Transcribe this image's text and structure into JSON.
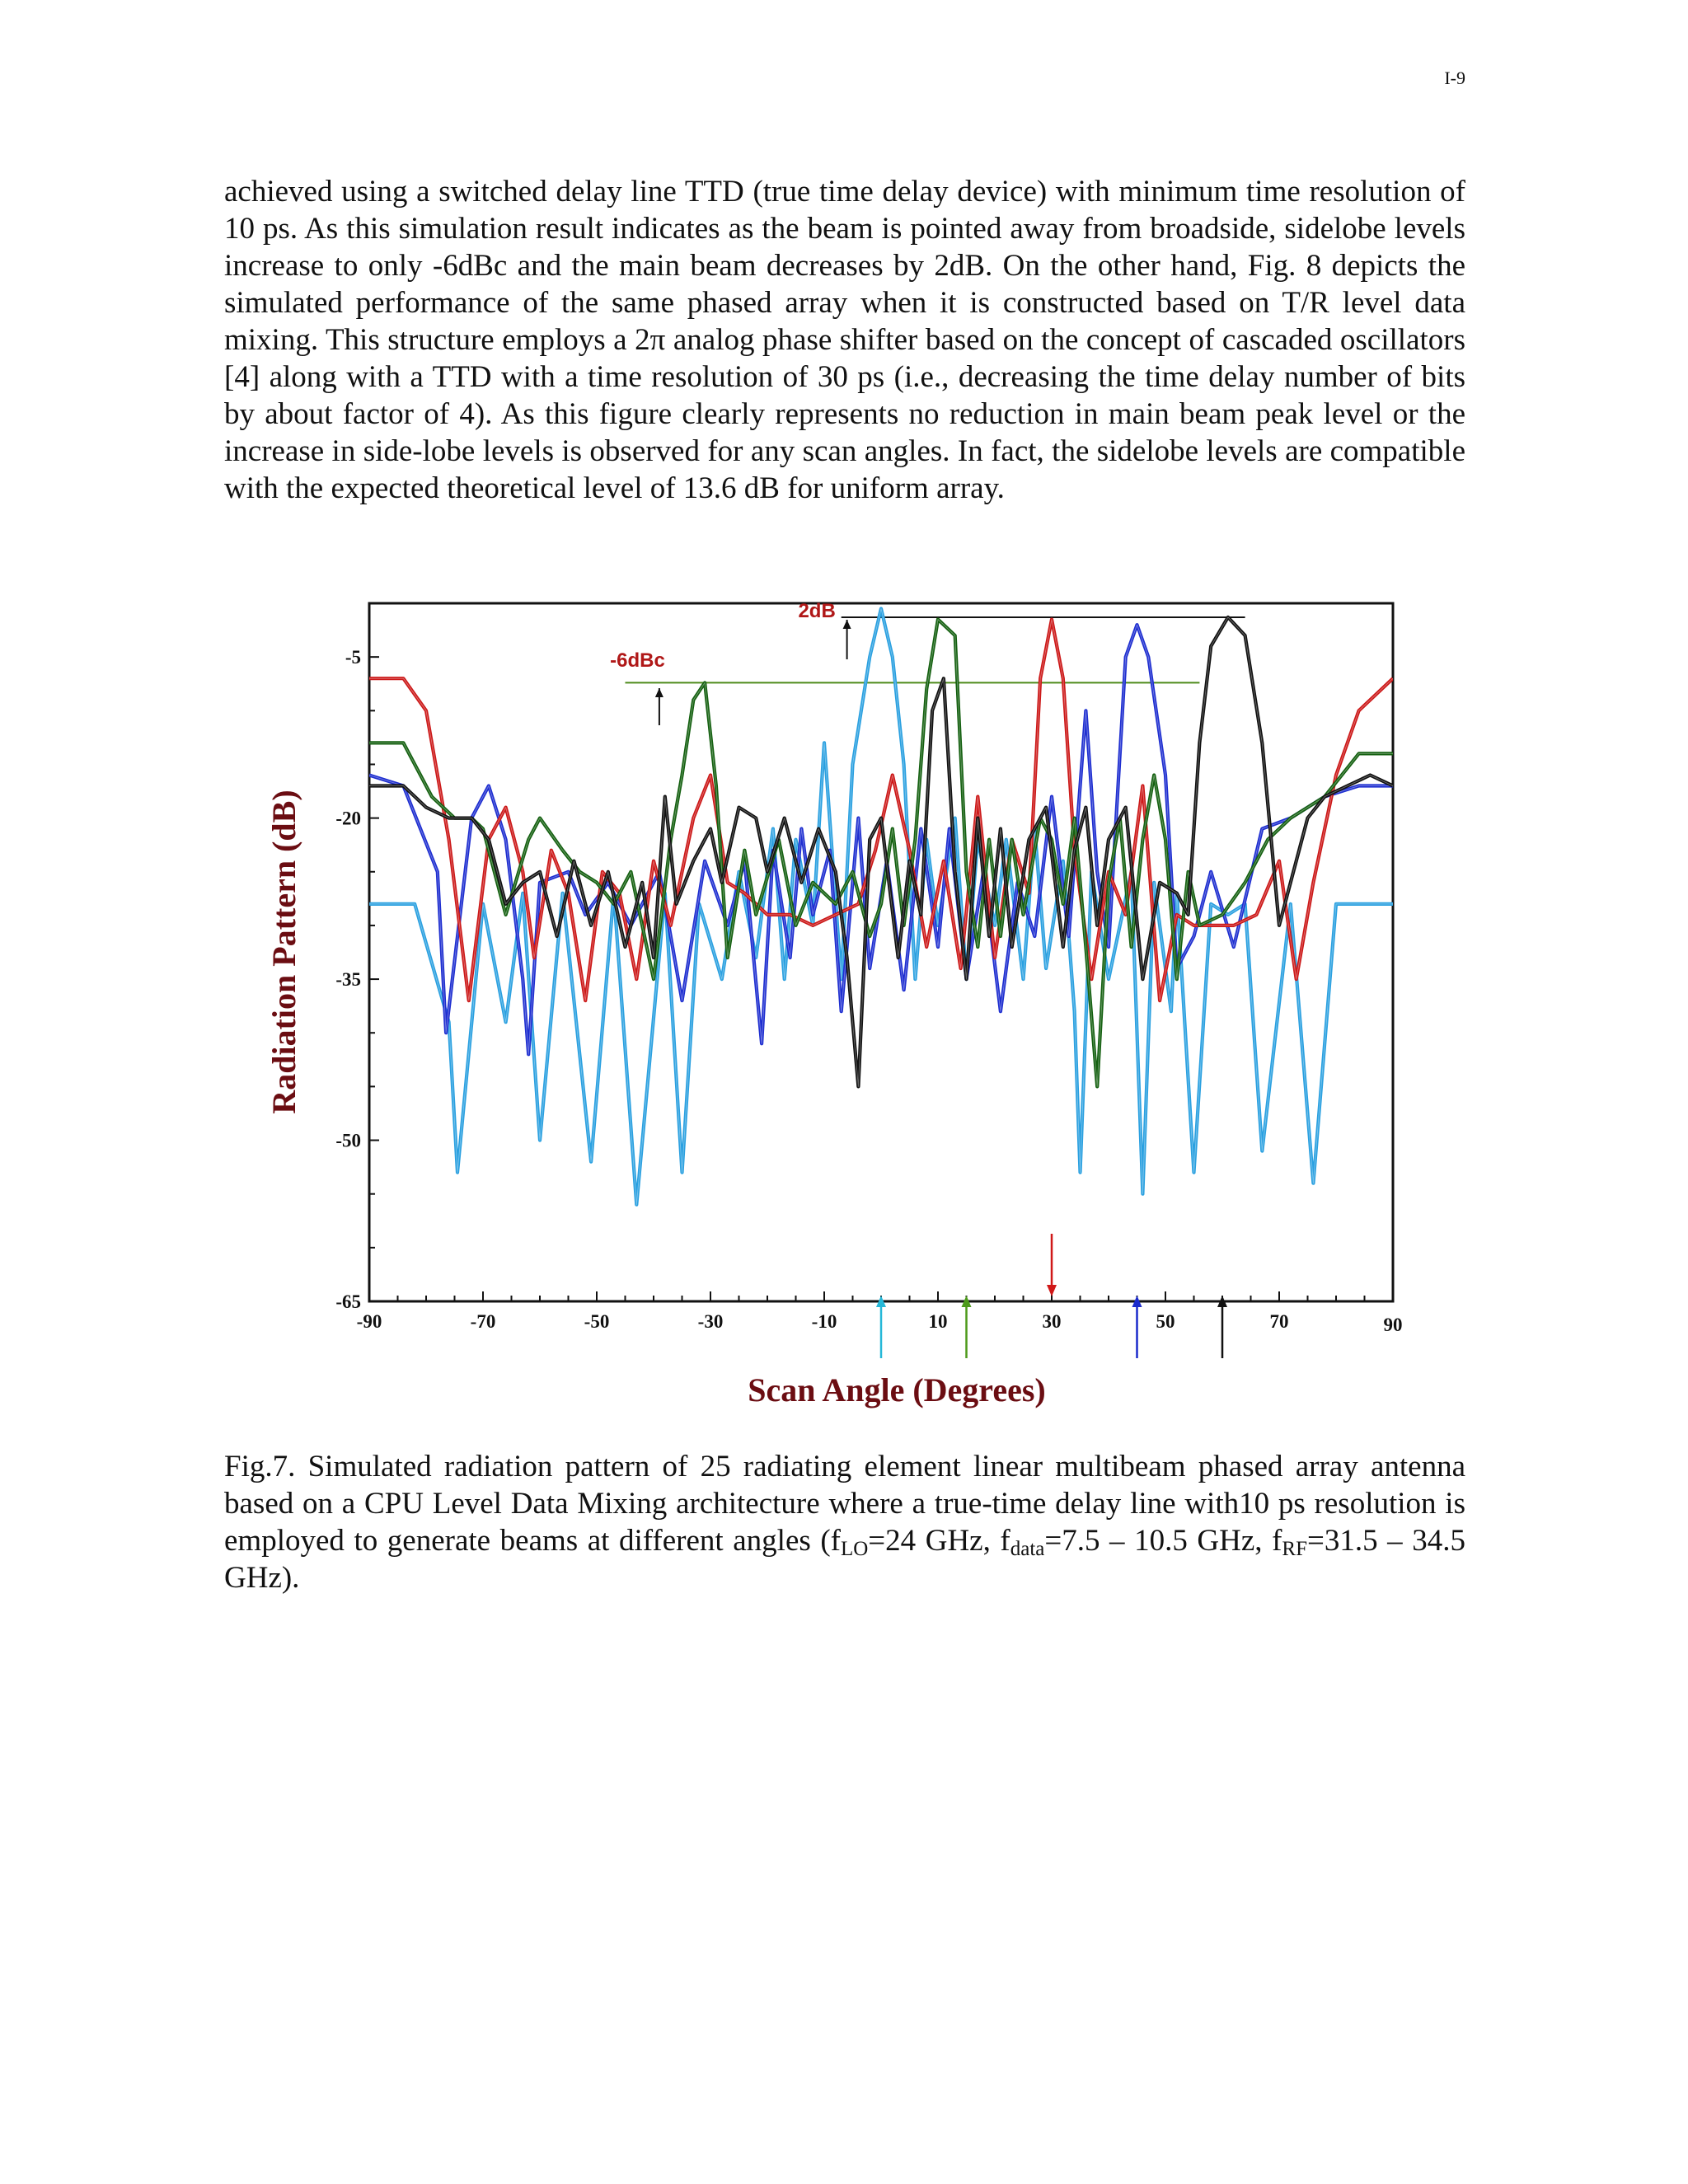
{
  "page": {
    "number": "I-9",
    "paragraph": "achieved using a switched delay line TTD (true time delay device) with minimum time resolution of 10 ps. As this simulation result indicates as the beam is pointed away from broadside, sidelobe levels increase to only -6dBc and the main beam decreases by 2dB. On the other hand, Fig. 8 depicts the simulated performance of the same phased array when it is constructed based on T/R level data mixing. This structure employs a 2π analog phase shifter based on the concept of cascaded oscillators [4] along with a TTD with a time resolution of 30 ps (i.e., decreasing the time delay number of bits by about factor of 4). As this figure clearly represents no reduction in main beam peak level or the increase in side-lobe levels is observed for any scan angles. In fact, the sidelobe levels are compatible with the expected theoretical level of 13.6 dB for uniform array."
  },
  "caption": {
    "part1": "Fig.7.  Simulated radiation pattern of 25 radiating element linear multibeam phased array antenna based on a CPU Level Data Mixing architecture where a true-time delay line with10 ps resolution is employed to generate beams at different angles (f",
    "sub_lo": "LO",
    "part2": "=24 GHz, f",
    "sub_data": "data",
    "part3": "=7.5 – 10.5 GHz, f",
    "sub_rf": "RF",
    "part4": "=31.5 – 34.5 GHz)."
  },
  "chart_data": {
    "type": "line",
    "xlabel": "Scan Angle (Degrees)",
    "ylabel": "Radiation Pattern (dB)",
    "xlim": [
      -90,
      90
    ],
    "ylim": [
      -65,
      0
    ],
    "x_ticks": [
      -90,
      -70,
      -50,
      -30,
      -10,
      10,
      30,
      50,
      70,
      90
    ],
    "y_ticks": [
      -5,
      -20,
      -35,
      -50,
      -65
    ],
    "grid": false,
    "annotations": [
      {
        "text": "2dB",
        "x": -8,
        "y": -1.3,
        "color": "#b01818"
      },
      {
        "text": "-6dBc",
        "x": -38,
        "y": -5.9,
        "color": "#b01818"
      }
    ],
    "reference_lines": [
      {
        "level_db": -1.3,
        "x_from": -7,
        "x_to": 64,
        "color": "#111111"
      },
      {
        "level_db": -7.4,
        "x_from": -45,
        "x_to": 56,
        "color": "#4d8a1a"
      }
    ],
    "beam_arrows": [
      {
        "x": 0,
        "color": "#26b8d8",
        "direction": "up"
      },
      {
        "x": 15,
        "color": "#4d9a1a",
        "direction": "up"
      },
      {
        "x": 30,
        "color": "#d01818",
        "direction": "down"
      },
      {
        "x": 45,
        "color": "#1a2acc",
        "direction": "up"
      },
      {
        "x": 60,
        "color": "#111111",
        "direction": "up"
      }
    ],
    "series": [
      {
        "color": "#2aa0e0",
        "x": [
          -90,
          -82,
          -76,
          -74.5,
          -70,
          -66,
          -63,
          -60,
          -56,
          -51,
          -47,
          -43,
          -38,
          -35,
          -32,
          -28,
          -25,
          -22,
          -19,
          -17,
          -15,
          -12,
          -10,
          -7,
          -5,
          -2,
          0,
          2,
          4,
          6,
          8,
          10,
          13,
          15,
          17,
          20,
          22,
          25,
          27,
          29,
          32,
          34,
          35,
          37,
          40,
          44,
          46,
          48,
          51,
          52,
          55,
          58,
          61,
          64,
          67,
          72,
          76,
          80,
          90
        ],
        "y": [
          -28,
          -28,
          -39,
          -53,
          -28,
          -39,
          -27,
          -50,
          -27,
          -52,
          -27,
          -56,
          -27,
          -53,
          -28,
          -35,
          -25,
          -33,
          -21,
          -35,
          -22,
          -30,
          -13,
          -35,
          -15,
          -5,
          -0.5,
          -5,
          -15,
          -35,
          -22,
          -30,
          -20,
          -35,
          -22,
          -30,
          -22,
          -35,
          -21,
          -34,
          -24,
          -38,
          -53,
          -25,
          -35,
          -25,
          -55,
          -26,
          -38,
          -27,
          -53,
          -28,
          -29,
          -28,
          -51,
          -28,
          -54,
          -28,
          -28
        ]
      },
      {
        "color": "#1e2ed0",
        "x": [
          -90,
          -84,
          -78,
          -76.5,
          -72,
          -69,
          -66,
          -63,
          -62,
          -60,
          -55,
          -52,
          -48,
          -44,
          -39,
          -35,
          -31,
          -27,
          -24,
          -21,
          -19,
          -16,
          -14,
          -12,
          -9,
          -7,
          -4,
          -2,
          1,
          4,
          7,
          10,
          12,
          15,
          18,
          21,
          24,
          27,
          30,
          33,
          36,
          38,
          40,
          43,
          45,
          47,
          50,
          52,
          55,
          58,
          62,
          67,
          72,
          78,
          84,
          90
        ],
        "y": [
          -16,
          -17,
          -25,
          -40,
          -20,
          -17,
          -22,
          -35,
          -42,
          -26,
          -25,
          -29,
          -26,
          -30,
          -25,
          -37,
          -24,
          -30,
          -24,
          -41,
          -23,
          -33,
          -21,
          -29,
          -23,
          -38,
          -20,
          -34,
          -24,
          -36,
          -21,
          -32,
          -21,
          -35,
          -25,
          -38,
          -26,
          -31,
          -18,
          -31,
          -10,
          -25,
          -32,
          -5,
          -2,
          -5,
          -16,
          -34,
          -31,
          -25,
          -32,
          -21,
          -20,
          -18,
          -17,
          -17
        ]
      },
      {
        "color": "#cc1818",
        "x": [
          -90,
          -84,
          -80,
          -76,
          -72.5,
          -69,
          -66,
          -63,
          -61,
          -58,
          -55,
          -52,
          -49,
          -46,
          -43,
          -40,
          -37,
          -33,
          -30,
          -27,
          -24,
          -20,
          -16,
          -12,
          -8,
          -4,
          -1,
          2,
          5,
          8,
          11,
          14,
          17,
          20,
          23,
          26,
          28,
          30,
          32,
          34,
          37,
          40,
          43,
          46,
          49,
          52,
          55,
          58,
          62,
          66,
          70,
          73,
          76,
          80,
          84,
          90
        ],
        "y": [
          -7,
          -7,
          -10,
          -22,
          -37,
          -22,
          -19,
          -25,
          -33,
          -23,
          -27,
          -37,
          -25,
          -27,
          -35,
          -24,
          -30,
          -20,
          -16,
          -26,
          -27,
          -29,
          -29,
          -30,
          -29,
          -28,
          -23,
          -16,
          -23,
          -32,
          -24,
          -34,
          -18,
          -33,
          -22,
          -27,
          -7,
          -1.5,
          -7,
          -23,
          -35,
          -25,
          -29,
          -17,
          -37,
          -29,
          -30,
          -30,
          -30,
          -29,
          -24,
          -35,
          -26,
          -16,
          -10,
          -7
        ]
      },
      {
        "color": "#146010",
        "x": [
          -90,
          -84,
          -79,
          -75,
          -72,
          -70,
          -66,
          -62,
          -60,
          -56,
          -53,
          -50,
          -47,
          -44,
          -40,
          -37,
          -35,
          -33,
          -31,
          -29,
          -27,
          -24,
          -22,
          -18,
          -15,
          -12,
          -8,
          -5,
          -2,
          0,
          2,
          4,
          6,
          8,
          10,
          13,
          15,
          17,
          19,
          21,
          23,
          25,
          28,
          30,
          32,
          34,
          36,
          38,
          40,
          42,
          44,
          46,
          48,
          50,
          52,
          54,
          56,
          60,
          64,
          68,
          72,
          78,
          84,
          90
        ],
        "y": [
          -13,
          -13,
          -18,
          -20,
          -20,
          -21,
          -29,
          -22,
          -20,
          -23,
          -25,
          -26,
          -28,
          -25,
          -35,
          -22,
          -16,
          -9,
          -7.4,
          -17,
          -33,
          -23,
          -29,
          -22,
          -30,
          -26,
          -28,
          -25,
          -31,
          -28,
          -21,
          -30,
          -22,
          -8,
          -1.5,
          -3,
          -25,
          -32,
          -22,
          -31,
          -22,
          -29,
          -20,
          -22,
          -28,
          -20,
          -32,
          -45,
          -26,
          -20,
          -32,
          -22,
          -16,
          -22,
          -35,
          -25,
          -30,
          -29,
          -26,
          -22,
          -20,
          -18,
          -14,
          -14
        ]
      },
      {
        "color": "#111111",
        "x": [
          -90,
          -84,
          -80,
          -76,
          -72,
          -69,
          -66,
          -63,
          -60,
          -57,
          -54,
          -51,
          -48,
          -45,
          -42,
          -40,
          -38,
          -36,
          -33,
          -30,
          -28,
          -25,
          -22,
          -20,
          -17,
          -14,
          -11,
          -8,
          -6,
          -4,
          -2,
          0,
          3,
          5,
          7,
          9,
          11,
          13,
          15,
          17,
          19,
          21,
          23,
          26,
          29,
          32,
          34,
          36,
          38,
          40,
          43,
          46,
          49,
          52,
          54,
          56,
          58,
          61,
          64,
          67,
          70,
          73,
          75,
          78,
          82,
          86,
          90
        ],
        "y": [
          -17,
          -17,
          -19,
          -20,
          -20,
          -22,
          -28,
          -26,
          -25,
          -31,
          -24,
          -30,
          -25,
          -32,
          -26,
          -33,
          -18,
          -28,
          -24,
          -21,
          -26,
          -19,
          -20,
          -25,
          -20,
          -26,
          -21,
          -25,
          -33,
          -45,
          -22,
          -20,
          -33,
          -24,
          -29,
          -10,
          -7,
          -25,
          -35,
          -20,
          -31,
          -21,
          -32,
          -22,
          -19,
          -32,
          -23,
          -19,
          -30,
          -22,
          -19,
          -35,
          -26,
          -27,
          -29,
          -13,
          -4,
          -1.3,
          -3,
          -13,
          -30,
          -24,
          -20,
          -18,
          -17,
          -16,
          -17
        ]
      }
    ]
  }
}
